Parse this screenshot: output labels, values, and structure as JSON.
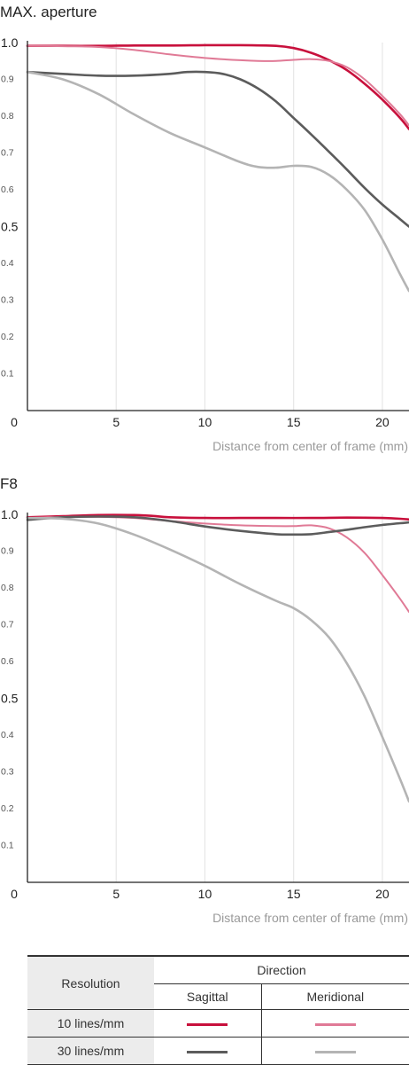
{
  "chart_data": [
    {
      "type": "line",
      "title": "MAX. aperture",
      "xlabel": "Distance from center of frame (mm)",
      "ylabel": "",
      "xlim": [
        0,
        21.5
      ],
      "ylim": [
        0,
        1.0
      ],
      "x_ticks": [
        "0",
        "5",
        "10",
        "15",
        "20"
      ],
      "y_ticks": [
        "1.0",
        "0.9",
        "0.8",
        "0.7",
        "0.6",
        "0.5",
        "0.4",
        "0.3",
        "0.2",
        "0.1"
      ],
      "grid": "vertical",
      "series": [
        {
          "key": "s10",
          "color": "#c8103c",
          "width": 2.6,
          "x": [
            0,
            2,
            4,
            6,
            8,
            10,
            12,
            14,
            15,
            16,
            17,
            18,
            19,
            20,
            21,
            21.5
          ],
          "y": [
            0.991,
            0.991,
            0.991,
            0.992,
            0.992,
            0.993,
            0.993,
            0.991,
            0.985,
            0.972,
            0.952,
            0.925,
            0.888,
            0.845,
            0.795,
            0.765
          ]
        },
        {
          "key": "m10",
          "color": "#e07a96",
          "width": 2.0,
          "x": [
            0,
            2,
            4,
            6,
            8,
            10,
            12,
            13,
            14,
            15,
            16,
            17,
            18,
            19,
            20,
            21,
            21.5
          ],
          "y": [
            0.991,
            0.99,
            0.988,
            0.98,
            0.968,
            0.958,
            0.952,
            0.95,
            0.95,
            0.953,
            0.955,
            0.95,
            0.933,
            0.9,
            0.855,
            0.805,
            0.775
          ]
        },
        {
          "key": "s30",
          "color": "#5c5c5c",
          "width": 2.6,
          "x": [
            0,
            2,
            4,
            6,
            8,
            9,
            10,
            11,
            12,
            13,
            14,
            15,
            16,
            17,
            18,
            19,
            20,
            21,
            21.5
          ],
          "y": [
            0.92,
            0.915,
            0.91,
            0.91,
            0.915,
            0.92,
            0.92,
            0.915,
            0.9,
            0.875,
            0.84,
            0.795,
            0.75,
            0.703,
            0.655,
            0.605,
            0.56,
            0.52,
            0.5
          ]
        },
        {
          "key": "m30",
          "color": "#b4b4b4",
          "width": 2.6,
          "x": [
            0,
            2,
            4,
            6,
            8,
            10,
            12,
            13,
            14,
            15,
            16,
            17,
            18,
            19,
            20,
            21,
            21.5
          ],
          "y": [
            0.92,
            0.9,
            0.86,
            0.805,
            0.755,
            0.715,
            0.675,
            0.662,
            0.66,
            0.665,
            0.662,
            0.64,
            0.6,
            0.545,
            0.465,
            0.37,
            0.325
          ]
        }
      ]
    },
    {
      "type": "line",
      "title": "F8",
      "xlabel": "Distance from center of frame (mm)",
      "ylabel": "",
      "xlim": [
        0,
        21.5
      ],
      "ylim": [
        0,
        1.0
      ],
      "x_ticks": [
        "0",
        "5",
        "10",
        "15",
        "20"
      ],
      "y_ticks": [
        "1.0",
        "0.9",
        "0.8",
        "0.7",
        "0.6",
        "0.5",
        "0.4",
        "0.3",
        "0.2",
        "0.1"
      ],
      "grid": "vertical",
      "series": [
        {
          "key": "s10",
          "color": "#c8103c",
          "width": 2.6,
          "x": [
            0,
            2,
            4,
            6,
            7,
            8,
            10,
            12,
            14,
            16,
            18,
            20,
            21,
            21.5
          ],
          "y": [
            0.992,
            0.995,
            0.998,
            0.998,
            0.996,
            0.992,
            0.99,
            0.99,
            0.99,
            0.99,
            0.991,
            0.99,
            0.988,
            0.986
          ]
        },
        {
          "key": "m10",
          "color": "#e07a96",
          "width": 2.0,
          "x": [
            0,
            2,
            4,
            6,
            8,
            10,
            12,
            14,
            15,
            16,
            17,
            18,
            19,
            20,
            21,
            21.5
          ],
          "y": [
            0.99,
            0.993,
            0.993,
            0.99,
            0.982,
            0.975,
            0.97,
            0.968,
            0.968,
            0.97,
            0.962,
            0.937,
            0.895,
            0.835,
            0.77,
            0.735
          ]
        },
        {
          "key": "s30",
          "color": "#5c5c5c",
          "width": 2.6,
          "x": [
            0,
            2,
            4,
            6,
            8,
            10,
            12,
            14,
            15,
            16,
            17,
            18,
            19,
            20,
            21,
            21.5
          ],
          "y": [
            0.985,
            0.992,
            0.994,
            0.992,
            0.982,
            0.967,
            0.955,
            0.946,
            0.945,
            0.946,
            0.952,
            0.958,
            0.965,
            0.971,
            0.976,
            0.978
          ]
        },
        {
          "key": "m30",
          "color": "#b4b4b4",
          "width": 2.6,
          "x": [
            0,
            2,
            4,
            6,
            8,
            10,
            12,
            14,
            15,
            16,
            17,
            18,
            19,
            20,
            21,
            21.5
          ],
          "y": [
            0.99,
            0.988,
            0.975,
            0.945,
            0.905,
            0.86,
            0.81,
            0.765,
            0.745,
            0.712,
            0.665,
            0.595,
            0.505,
            0.395,
            0.28,
            0.22
          ]
        }
      ]
    }
  ],
  "legend": {
    "resolution_label": "Resolution",
    "direction_label": "Direction",
    "sagittal_label": "Sagittal",
    "meridional_label": "Meridional",
    "rows": [
      {
        "label": "10 lines/mm",
        "sagittal_color": "#c8103c",
        "meridional_color": "#e07a96"
      },
      {
        "label": "30 lines/mm",
        "sagittal_color": "#5c5c5c",
        "meridional_color": "#b4b4b4"
      }
    ]
  }
}
